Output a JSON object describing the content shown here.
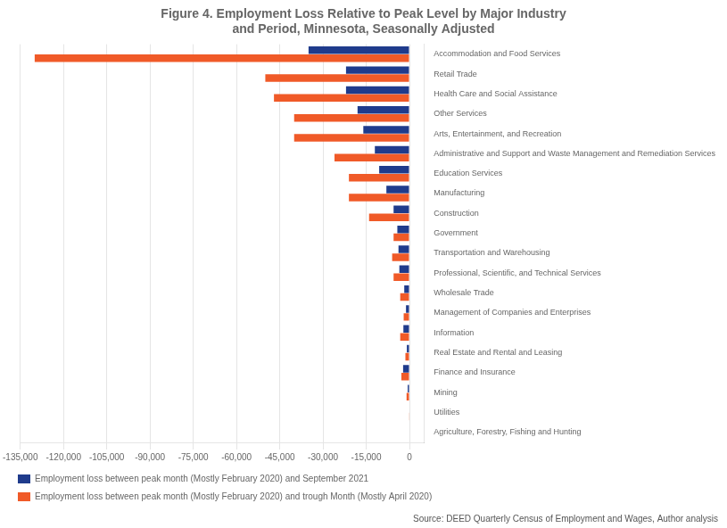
{
  "chart_data": {
    "type": "bar",
    "orientation": "horizontal",
    "title": "Figure 4. Employment Loss Relative to Peak Level by Major Industry\nand Period, Minnesota, Seasonally Adjusted",
    "categories": [
      "Agriculture, Forestry, Fishing and Hunting",
      "Utilities",
      "Mining",
      "Finance and Insurance",
      "Real Estate and Rental and Leasing",
      "Information",
      "Management of Companies and Enterprises",
      "Wholesale Trade",
      "Professional, Scientific, and Technical Services",
      "Transportation and Warehousing",
      "Government",
      "Construction",
      "Manufacturing",
      "Education Services",
      "Administrative and Support and Waste Management and Remediation Services",
      "Arts, Entertainment, and Recreation",
      "Other Services",
      "Health Care and Social Assistance",
      "Retail Trade",
      "Accommodation and Food Services"
    ],
    "series": [
      {
        "name": "Employment loss between peak month (Mostly February 2020) and September 2021",
        "color": "#1f3b8c",
        "values": [
          0,
          0,
          -600,
          -2200,
          -900,
          -2100,
          -1200,
          -1800,
          -3500,
          -3800,
          -4200,
          -5500,
          -8000,
          -10500,
          -12000,
          -16000,
          -18000,
          -22000,
          -22000,
          -35000
        ]
      },
      {
        "name": "Employment loss between peak month (Mostly February 2020) and trough Month (Mostly April 2020)",
        "color": "#f05a28",
        "values": [
          0,
          -200,
          -1000,
          -2800,
          -1400,
          -3200,
          -2000,
          -3200,
          -5500,
          -6000,
          -5500,
          -14000,
          -21000,
          -21000,
          -26000,
          -40000,
          -40000,
          -47000,
          -50000,
          -130000
        ]
      }
    ],
    "xlim": [
      -135000,
      5000
    ],
    "xticks": [
      {
        "value": -135000,
        "label": "-135,000"
      },
      {
        "value": -120000,
        "label": "-120,000"
      },
      {
        "value": -105000,
        "label": "-105,000"
      },
      {
        "value": -90000,
        "label": "-90,000"
      },
      {
        "value": -75000,
        "label": "-75,000"
      },
      {
        "value": -60000,
        "label": "-60,000"
      },
      {
        "value": -45000,
        "label": "-45,000"
      },
      {
        "value": -30000,
        "label": "-30,000"
      },
      {
        "value": -15000,
        "label": "-15,000"
      },
      0
    ],
    "grid": true,
    "legend": "bottom",
    "annotations": [
      "Source: DEED Quarterly Census of Employment and Wages, Author analysis"
    ]
  }
}
